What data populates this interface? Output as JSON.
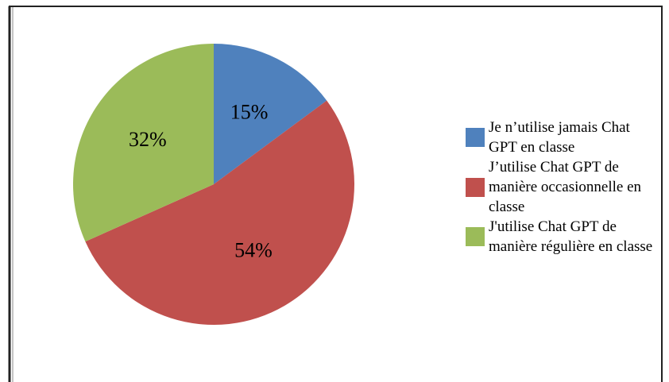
{
  "chart_data": {
    "type": "pie",
    "categories": [
      "Je n’utilise jamais Chat GPT en classe",
      "J’utilise Chat GPT de manière occasionnelle en classe",
      "J'utilise Chat GPT de manière régulière en classe"
    ],
    "values": [
      15,
      54,
      32
    ],
    "value_labels": [
      "15%",
      "54%",
      "32%"
    ],
    "colors": [
      "#4f81bd",
      "#c0504d",
      "#9bbb59"
    ],
    "legend": "right"
  }
}
